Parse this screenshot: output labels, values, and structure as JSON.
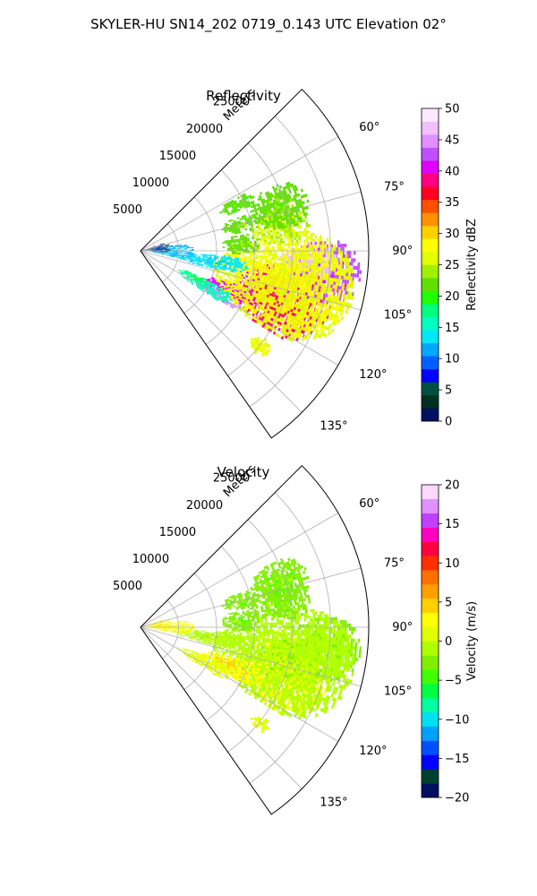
{
  "figure": {
    "title": "SKYLER-HU  SN14_202  0719_0.143 UTC Elevation 02°"
  },
  "chart_data": [
    {
      "type": "heatmap",
      "projection": "polar-sector",
      "title": "Reflectivity",
      "radial_label": "Meters",
      "radial_ticks": [
        "5000",
        "10000",
        "15000",
        "20000",
        "25000"
      ],
      "radial_range": [
        0,
        30000
      ],
      "angle_range_deg": [
        45,
        145
      ],
      "angle_ticks": [
        "60°",
        "75°",
        "90°",
        "105°",
        "120°",
        "135°"
      ],
      "colorbar": {
        "label": "Reflectivity dBZ",
        "range": [
          0,
          50
        ],
        "ticks": [
          "0",
          "5",
          "10",
          "15",
          "20",
          "25",
          "30",
          "35",
          "40",
          "45",
          "50"
        ],
        "colors": [
          "#001060",
          "#003020",
          "#005040",
          "#0000ff",
          "#0060ff",
          "#00a8ff",
          "#00e8f8",
          "#00ffc0",
          "#00ff80",
          "#20ff00",
          "#60e000",
          "#a0f000",
          "#e0ff00",
          "#ffff00",
          "#ffd000",
          "#ff9000",
          "#ff5000",
          "#ff0020",
          "#ff0080",
          "#e000ff",
          "#c050ff",
          "#e090ff",
          "#f0c0ff",
          "#fce8ff"
        ]
      },
      "regions": [
        {
          "az": 108,
          "r": 19500,
          "wa": 14,
          "wr": 6500,
          "v": 38
        },
        {
          "az": 96,
          "r": 24000,
          "wa": 10,
          "wr": 5000,
          "v": 42
        },
        {
          "az": 113,
          "r": 13000,
          "wa": 5,
          "wr": 4000,
          "v": 40
        },
        {
          "az": 119,
          "r": 12000,
          "wa": 3,
          "wr": 3000,
          "v": 44
        },
        {
          "az": 93,
          "r": 22000,
          "wa": 5,
          "wr": 4000,
          "v": 47
        },
        {
          "az": 102,
          "r": 19000,
          "wa": 20,
          "wr": 9500,
          "v": 27
        },
        {
          "az": 80,
          "r": 18500,
          "wa": 7,
          "wr": 4000,
          "v": 25
        },
        {
          "az": 72,
          "r": 19000,
          "wa": 9,
          "wr": 4000,
          "v": 22
        },
        {
          "az": 75,
          "r": 13500,
          "wa": 5,
          "wr": 2500,
          "v": 22
        },
        {
          "az": 86,
          "r": 13000,
          "wa": 6,
          "wr": 2500,
          "v": 22
        },
        {
          "az": 64,
          "r": 14000,
          "wa": 4,
          "wr": 2500,
          "v": 21
        },
        {
          "az": 118,
          "r": 9500,
          "wa": 5,
          "wr": 4000,
          "v": 15
        },
        {
          "az": 98,
          "r": 9000,
          "wa": 6,
          "wr": 5000,
          "v": 13
        },
        {
          "az": 90,
          "r": 4000,
          "wa": 10,
          "wr": 3000,
          "v": 12
        },
        {
          "az": 82,
          "r": 2000,
          "wa": 12,
          "wr": 2000,
          "v": 6
        },
        {
          "az": 116,
          "r": 8000,
          "wa": 4,
          "wr": 2500,
          "v": 18
        },
        {
          "az": 128,
          "r": 20000,
          "wa": 3,
          "wr": 1500,
          "v": 27
        }
      ]
    },
    {
      "type": "heatmap",
      "projection": "polar-sector",
      "title": "Velocity",
      "radial_label": "Meters",
      "radial_ticks": [
        "5000",
        "10000",
        "15000",
        "20000",
        "25000"
      ],
      "radial_range": [
        0,
        30000
      ],
      "angle_range_deg": [
        45,
        145
      ],
      "angle_ticks": [
        "60°",
        "75°",
        "90°",
        "105°",
        "120°",
        "135°"
      ],
      "colorbar": {
        "label": "Velocity (m/s)",
        "range": [
          -20,
          20
        ],
        "ticks": [
          "−20",
          "−15",
          "−10",
          "−5",
          "0",
          "5",
          "10",
          "15",
          "20"
        ],
        "colors": [
          "#001060",
          "#004030",
          "#0000ff",
          "#0050ff",
          "#00a0ff",
          "#00e0f0",
          "#00ffa0",
          "#00ff40",
          "#40ff00",
          "#80f000",
          "#b0ff00",
          "#e0ff00",
          "#ffff00",
          "#ffd000",
          "#ffa000",
          "#ff7000",
          "#ff3000",
          "#ff0040",
          "#ff00c0",
          "#c040ff",
          "#e090ff",
          "#fcd8ff"
        ]
      },
      "regions": [
        {
          "az": 108,
          "r": 19500,
          "wa": 14,
          "wr": 6500,
          "v": 2
        },
        {
          "az": 96,
          "r": 24000,
          "wa": 10,
          "wr": 5000,
          "v": -2
        },
        {
          "az": 102,
          "r": 19000,
          "wa": 20,
          "wr": 9500,
          "v": -1
        },
        {
          "az": 80,
          "r": 18500,
          "wa": 7,
          "wr": 4000,
          "v": -3
        },
        {
          "az": 72,
          "r": 19000,
          "wa": 9,
          "wr": 4000,
          "v": -3
        },
        {
          "az": 75,
          "r": 13500,
          "wa": 5,
          "wr": 2500,
          "v": -3
        },
        {
          "az": 86,
          "r": 13000,
          "wa": 6,
          "wr": 2500,
          "v": -3
        },
        {
          "az": 113,
          "r": 13000,
          "wa": 6,
          "wr": 4500,
          "v": 3
        },
        {
          "az": 118,
          "r": 9500,
          "wa": 5,
          "wr": 4000,
          "v": 1
        },
        {
          "az": 98,
          "r": 9000,
          "wa": 6,
          "wr": 5000,
          "v": -1
        },
        {
          "az": 90,
          "r": 4000,
          "wa": 10,
          "wr": 3000,
          "v": 2
        },
        {
          "az": 82,
          "r": 2000,
          "wa": 12,
          "wr": 2000,
          "v": 3
        },
        {
          "az": 128,
          "r": 20000,
          "wa": 3,
          "wr": 1500,
          "v": 1
        }
      ]
    }
  ]
}
